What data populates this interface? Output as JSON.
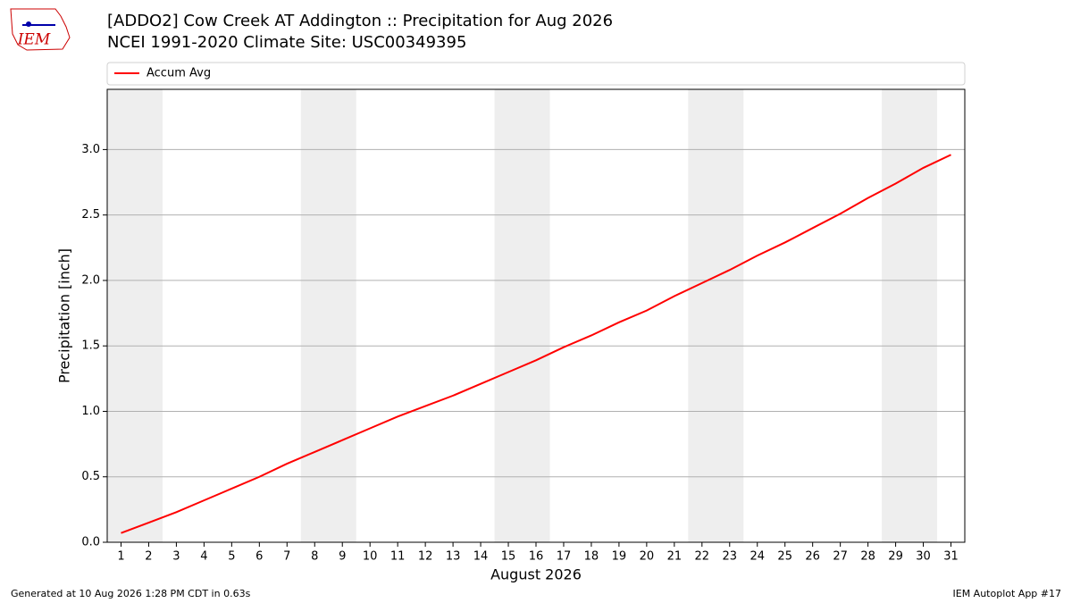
{
  "logo": "IEM",
  "chart_data": {
    "type": "line",
    "title": "[ADDO2] Cow Creek  AT Addington :: Precipitation for Aug 2026",
    "subtitle": "NCEI 1991-2020 Climate Site: USC00349395",
    "x_label": "August 2026",
    "y_label": "Precipitation [inch]",
    "x": [
      1,
      2,
      3,
      4,
      5,
      6,
      7,
      8,
      9,
      10,
      11,
      12,
      13,
      14,
      15,
      16,
      17,
      18,
      19,
      20,
      21,
      22,
      23,
      24,
      25,
      26,
      27,
      28,
      29,
      30,
      31
    ],
    "series": [
      {
        "name": "Accum Avg",
        "color": "#ff0000",
        "values": [
          0.07,
          0.15,
          0.23,
          0.32,
          0.41,
          0.5,
          0.6,
          0.69,
          0.78,
          0.87,
          0.96,
          1.04,
          1.12,
          1.21,
          1.3,
          1.39,
          1.49,
          1.58,
          1.68,
          1.77,
          1.88,
          1.98,
          2.08,
          2.19,
          2.29,
          2.4,
          2.51,
          2.63,
          2.74,
          2.86,
          2.96
        ]
      }
    ],
    "shaded_spans": [
      [
        0.5,
        2.5
      ],
      [
        7.5,
        9.5
      ],
      [
        14.5,
        16.5
      ],
      [
        21.5,
        23.5
      ],
      [
        28.5,
        30.5
      ]
    ],
    "shade_color": "#eeeeee",
    "xlim": [
      0.5,
      31.5
    ],
    "xticks": [
      1,
      2,
      3,
      4,
      5,
      6,
      7,
      8,
      9,
      10,
      11,
      12,
      13,
      14,
      15,
      16,
      17,
      18,
      19,
      20,
      21,
      22,
      23,
      24,
      25,
      26,
      27,
      28,
      29,
      30,
      31
    ],
    "ylim": [
      0,
      3.46
    ],
    "yticks": [
      {
        "value": 0,
        "label": "0.0"
      },
      {
        "value": 0.5,
        "label": "0.5"
      },
      {
        "value": 1,
        "label": "1.0"
      },
      {
        "value": 1.5,
        "label": "1.5"
      },
      {
        "value": 2,
        "label": "2.0"
      },
      {
        "value": 2.5,
        "label": "2.5"
      },
      {
        "value": 3,
        "label": "3.0"
      }
    ],
    "grid": "y",
    "legend": "top"
  },
  "footer_left": "Generated at 10 Aug 2026 1:28 PM CDT in 0.63s",
  "footer_right": "IEM Autoplot App #17"
}
